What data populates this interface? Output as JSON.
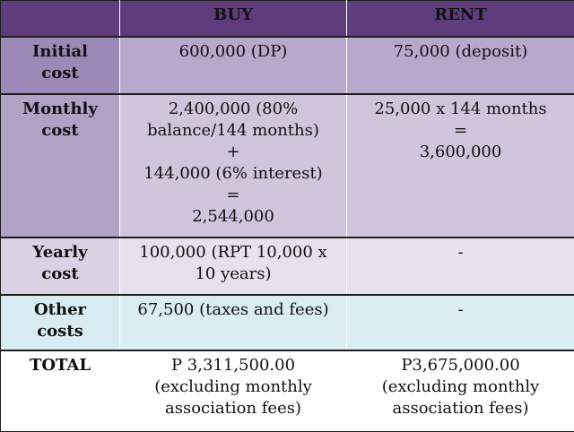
{
  "header": {
    "blank": "",
    "buy": "BUY",
    "rent": "RENT"
  },
  "rows": {
    "initial": {
      "label": [
        "Initial",
        "cost"
      ],
      "buy": [
        "600,000 (DP)"
      ],
      "rent": [
        "75,000 (deposit)"
      ]
    },
    "monthly": {
      "label": [
        "Monthly",
        "cost"
      ],
      "buy": [
        "2,400,000 (80%",
        "balance/144 months)",
        "+",
        "144,000 (6% interest)",
        "=",
        "2,544,000"
      ],
      "rent": [
        "25,000 x 144 months",
        "=",
        "3,600,000"
      ]
    },
    "yearly": {
      "label": [
        "Yearly",
        "cost"
      ],
      "buy": [
        "100,000 (RPT 10,000 x",
        "10 years)"
      ],
      "rent": [
        "-"
      ]
    },
    "other": {
      "label": [
        "Other",
        "costs"
      ],
      "buy": [
        "67,500 (taxes and fees)"
      ],
      "rent": [
        "-"
      ]
    },
    "total": {
      "label": [
        "TOTAL"
      ],
      "buy": [
        "P 3,311,500.00",
        "(excluding monthly",
        "association fees)"
      ],
      "rent": [
        "P3,675,000.00",
        "(excluding monthly",
        "association fees)"
      ]
    }
  }
}
